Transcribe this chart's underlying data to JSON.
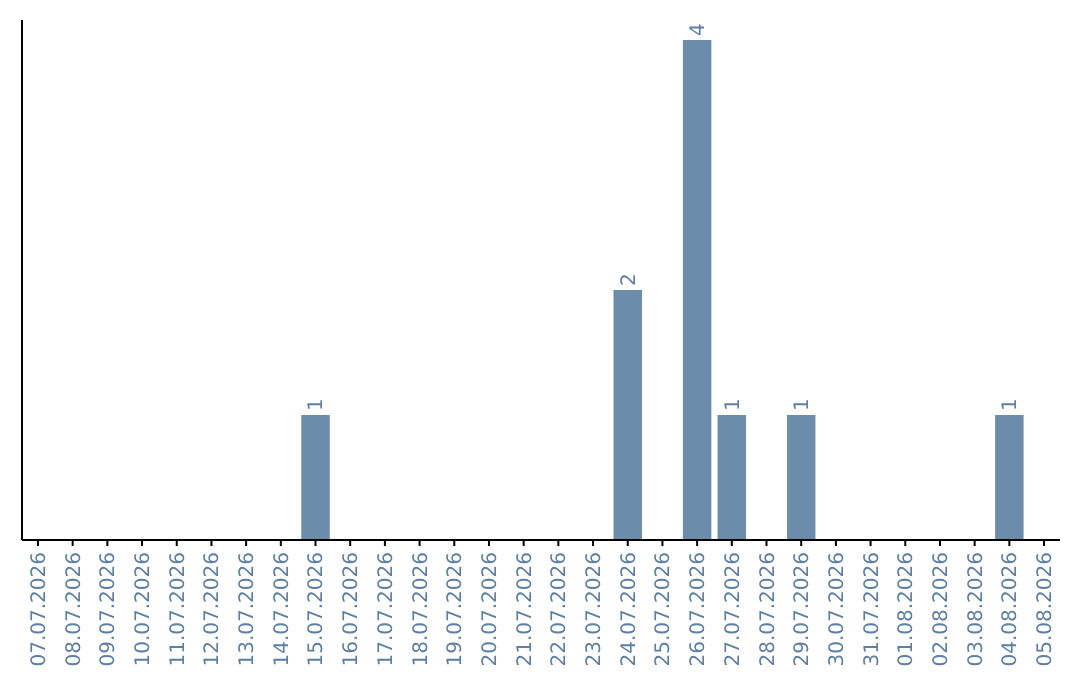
{
  "chart_data": {
    "type": "bar",
    "categories": [
      "07.07.2026",
      "08.07.2026",
      "09.07.2026",
      "10.07.2026",
      "11.07.2026",
      "12.07.2026",
      "13.07.2026",
      "14.07.2026",
      "15.07.2026",
      "16.07.2026",
      "17.07.2026",
      "18.07.2026",
      "19.07.2026",
      "20.07.2026",
      "21.07.2026",
      "22.07.2026",
      "23.07.2026",
      "24.07.2026",
      "25.07.2026",
      "26.07.2026",
      "27.07.2026",
      "28.07.2026",
      "29.07.2026",
      "30.07.2026",
      "31.07.2026",
      "01.08.2026",
      "02.08.2026",
      "03.08.2026",
      "04.08.2026",
      "05.08.2026"
    ],
    "values": [
      0,
      0,
      0,
      0,
      0,
      0,
      0,
      0,
      1,
      0,
      0,
      0,
      0,
      0,
      0,
      0,
      0,
      2,
      0,
      4,
      1,
      0,
      1,
      0,
      0,
      0,
      0,
      0,
      1,
      0
    ],
    "color": "#6b8cab",
    "value_labels": [
      null,
      null,
      null,
      null,
      null,
      null,
      null,
      null,
      "1",
      null,
      null,
      null,
      null,
      null,
      null,
      null,
      null,
      "2",
      null,
      "4",
      "1",
      null,
      "1",
      null,
      null,
      null,
      null,
      null,
      "1",
      null
    ]
  }
}
